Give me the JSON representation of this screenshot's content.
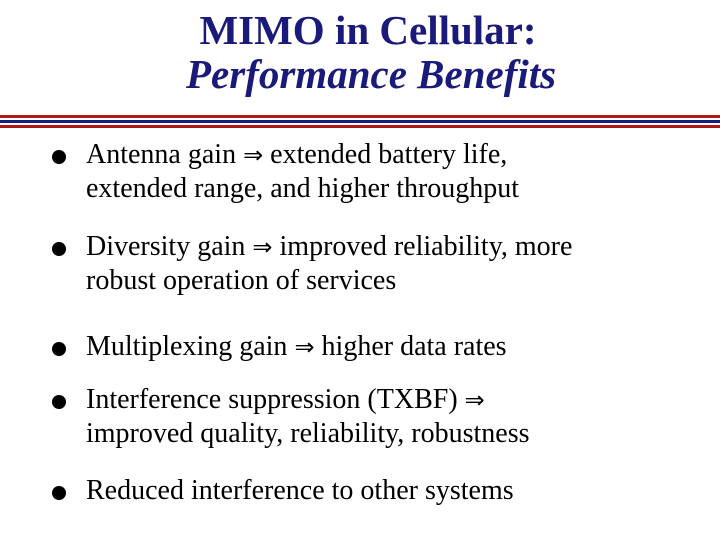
{
  "title": {
    "line1": "MIMO in Cellular:",
    "line2": "Performance Benefits"
  },
  "colors": {
    "title": "#1a1a7a",
    "rule_red": "#b01818",
    "rule_blue": "#1a1a7a"
  },
  "arrow_symbol": "⇒",
  "bullets": [
    {
      "before": "Antenna gain",
      "after": "extended battery life,",
      "line2": "extended range, and higher throughput"
    },
    {
      "before": "Diversity gain",
      "after": "improved reliability, more",
      "line2": "robust operation of services"
    },
    {
      "before": "Multiplexing gain",
      "after": "higher data rates",
      "line2": ""
    },
    {
      "before": "Interference suppression (TXBF)",
      "after": "",
      "line2": "improved quality, reliability, robustness"
    },
    {
      "before": "Reduced interference to other systems",
      "after": "",
      "line2": ""
    }
  ]
}
